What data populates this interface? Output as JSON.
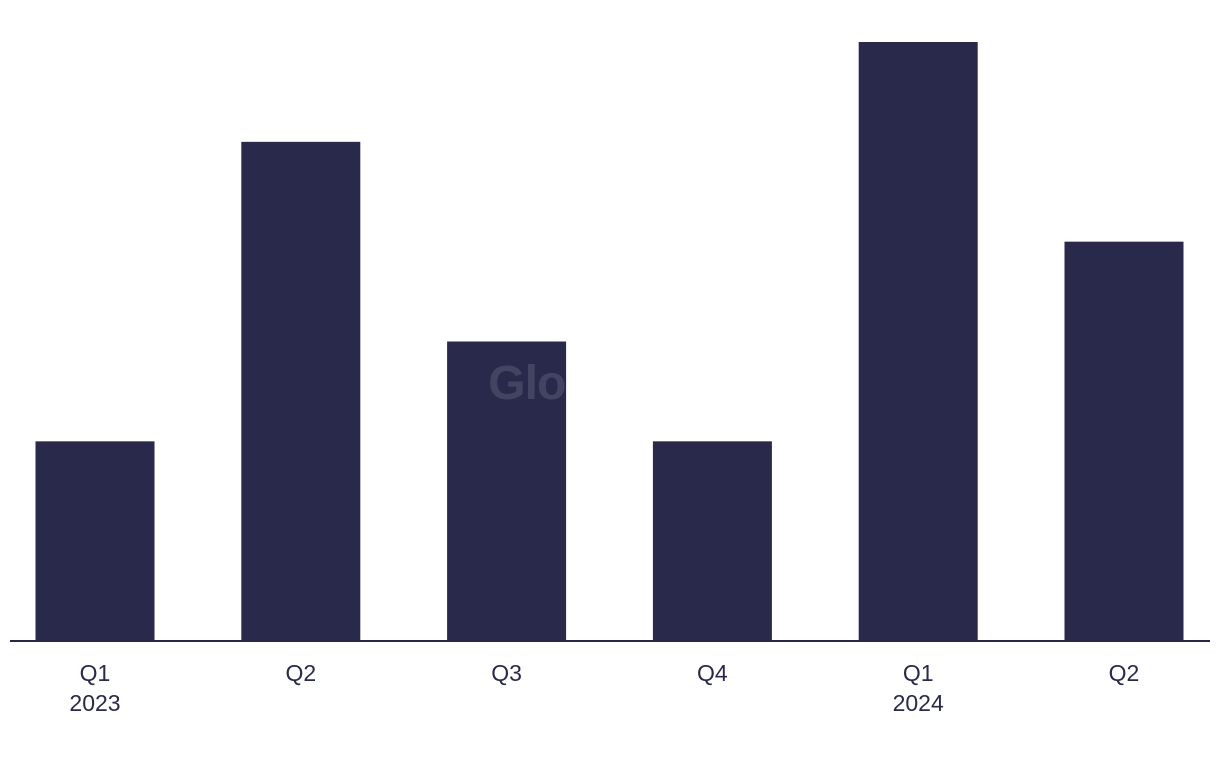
{
  "chart_data": {
    "type": "bar",
    "categories": [
      "Q1\n2023",
      "Q2",
      "Q3",
      "Q4",
      "Q1\n2024",
      "Q2"
    ],
    "values": [
      2,
      5,
      3,
      2,
      6,
      4
    ],
    "color": "#29294b",
    "ylim": [
      0,
      6
    ],
    "watermark": "GlobalData"
  }
}
